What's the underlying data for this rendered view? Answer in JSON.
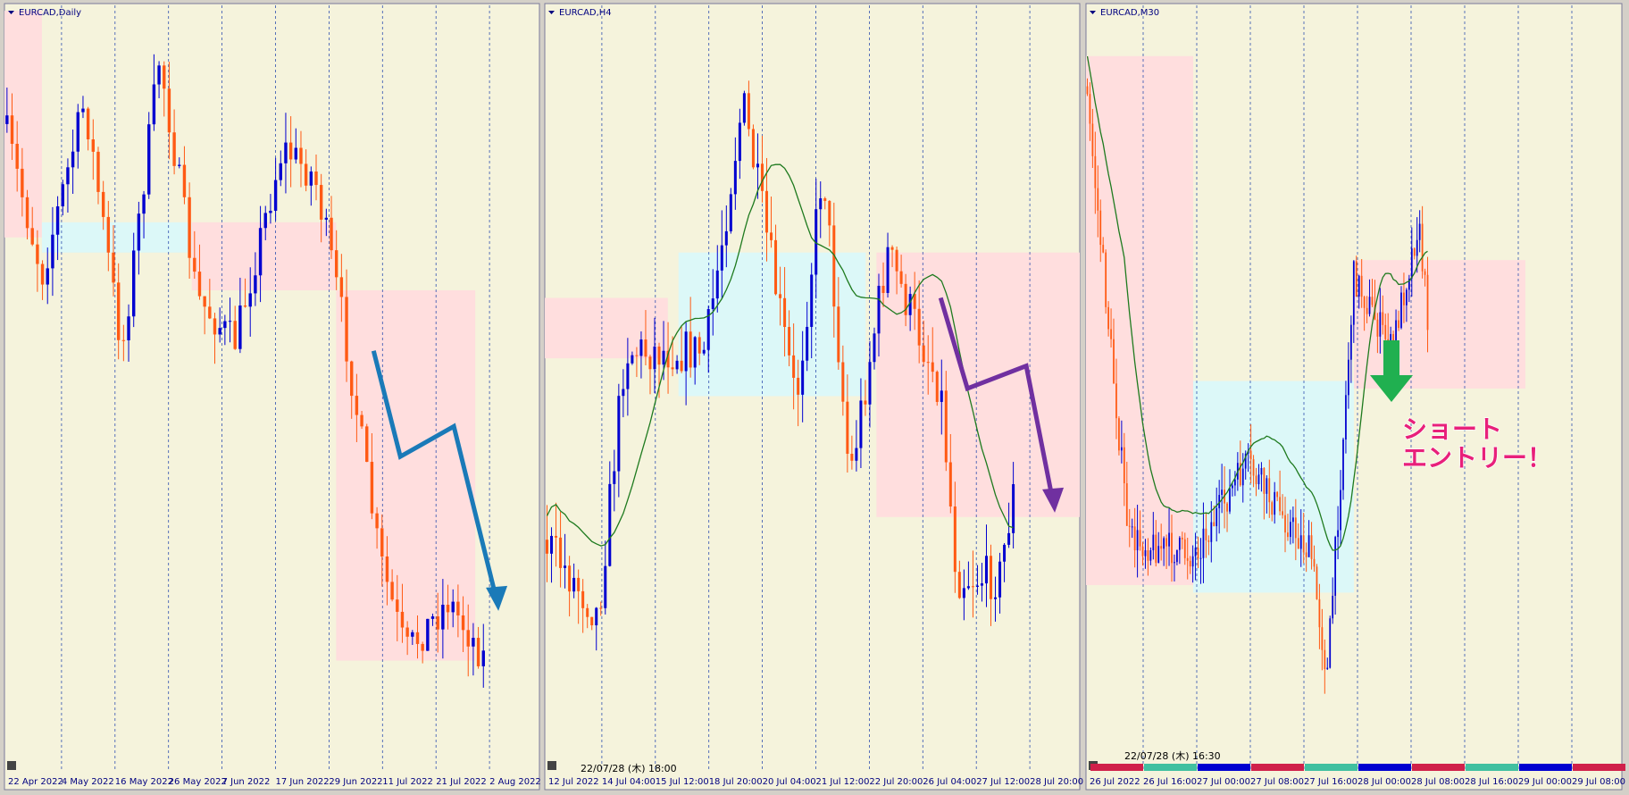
{
  "panels": [
    {
      "title": "EURCAD,Daily",
      "x_labels": [
        "22 Apr 2022",
        "4 May 2022",
        "16 May 2022",
        "26 May 2022",
        "7 Jun 2022",
        "17 Jun 2022",
        "29 Jun 2022",
        "11 Jul 2022",
        "21 Jul 2022",
        "2 Aug 2022"
      ]
    },
    {
      "title": "EURCAD,H4",
      "x_labels": [
        "12 Jul 2022",
        "14 Jul 04:00",
        "15 Jul 12:00",
        "18 Jul 20:00",
        "20 Jul 04:00",
        "21 Jul 12:00",
        "22 Jul 20:00",
        "26 Jul 04:00",
        "27 Jul 12:00",
        "28 Jul 20:00"
      ],
      "timestamp": "22/07/28 (木) 18:00"
    },
    {
      "title": "EURCAD,M30",
      "x_labels": [
        "26 Jul 2022",
        "26 Jul 16:00",
        "27 Jul 00:00",
        "27 Jul 08:00",
        "27 Jul 16:00",
        "28 Jul 00:00",
        "28 Jul 08:00",
        "28 Jul 16:00",
        "29 Jul 00:00",
        "29 Jul 08:00"
      ],
      "timestamp": "22/07/28 (木) 16:30",
      "annotation": [
        "ショート",
        "エントリー！"
      ]
    }
  ]
}
